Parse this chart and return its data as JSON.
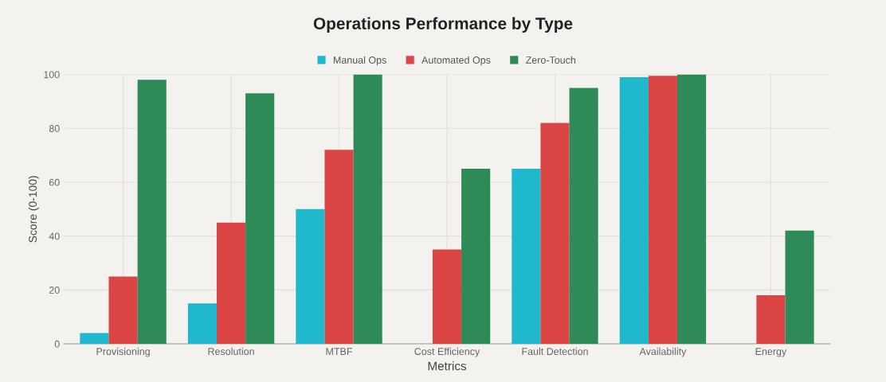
{
  "chart_data": {
    "type": "bar",
    "title": "Operations Performance by Type",
    "xlabel": "Metrics",
    "ylabel": "Score (0-100)",
    "categories": [
      "Provisioning",
      "Resolution",
      "MTBF",
      "Cost Efficiency",
      "Fault Detection",
      "Availability",
      "Energy"
    ],
    "series": [
      {
        "name": "Manual Ops",
        "color": "#1fb8cd",
        "values": [
          4,
          15,
          50,
          0,
          65,
          99,
          0
        ]
      },
      {
        "name": "Automated Ops",
        "color": "#db4545",
        "values": [
          25,
          45,
          72,
          35,
          82,
          99.5,
          18
        ]
      },
      {
        "name": "Zero-Touch",
        "color": "#2e8b57",
        "values": [
          98,
          93,
          100,
          65,
          95,
          100,
          42
        ]
      }
    ],
    "ylim": [
      0,
      100
    ],
    "yticks": [
      0,
      20,
      40,
      60,
      80,
      100
    ],
    "grid": true,
    "legend": "top"
  }
}
